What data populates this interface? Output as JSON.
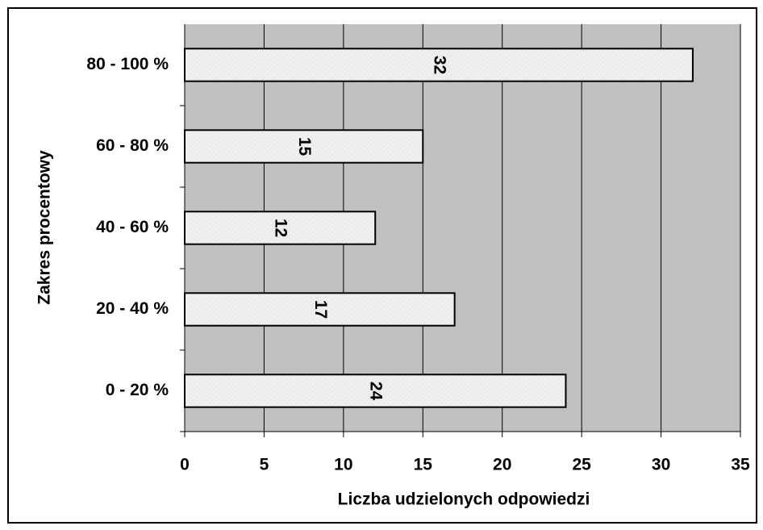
{
  "chart_data": {
    "type": "hbar",
    "categories": [
      "0 - 20 %",
      "20 - 40 %",
      "40 - 60 %",
      "60 - 80 %",
      "80 - 100 %"
    ],
    "values": [
      24,
      17,
      12,
      15,
      32
    ],
    "color": "#eeeeee",
    "xlabel": "Liczba udzielonych odpowiedzi",
    "ylabel": "Zakres procentowy",
    "xlim": [
      0,
      35
    ],
    "xticks": [
      0,
      5,
      10,
      15,
      20,
      25,
      30,
      35
    ],
    "grid": true
  }
}
